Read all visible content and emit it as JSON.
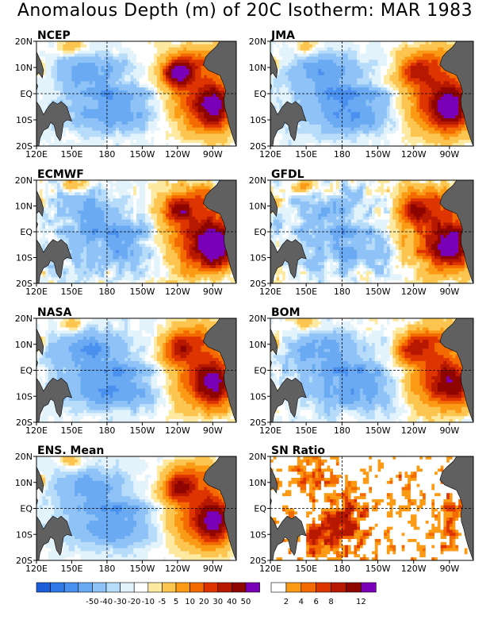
{
  "figure_title": "Anomalous Depth (m) of 20C Isotherm: MAR 1983",
  "chart_data": [
    {
      "type": "heatmap",
      "title": "NCEP",
      "x_ticks": [
        "120E",
        "150E",
        "180",
        "150W",
        "120W",
        "90W"
      ],
      "y_ticks": [
        "20N",
        "10N",
        "EQ",
        "10S",
        "20S"
      ],
      "xlim": [
        "120E",
        "70W"
      ],
      "ylim": [
        "20S",
        "20N"
      ],
      "grid": "dashed lines at EQ and 180",
      "features": {
        "warm_east": 1.0,
        "warm_north": 1.3,
        "cool_west": 0.9,
        "eq_cool": 0.8,
        "noise": 0.2
      }
    },
    {
      "type": "heatmap",
      "title": "JMA",
      "x_ticks": [
        "120E",
        "150E",
        "180",
        "150W",
        "120W",
        "90W"
      ],
      "y_ticks": [
        "20N",
        "10N",
        "EQ",
        "10S",
        "20S"
      ],
      "xlim": [
        "120E",
        "70W"
      ],
      "ylim": [
        "20S",
        "20N"
      ],
      "grid": "dashed lines at EQ and 180",
      "features": {
        "warm_east": 1.1,
        "warm_north": 0.6,
        "cool_west": 1.0,
        "eq_cool": 1.0,
        "noise": 0.2
      }
    },
    {
      "type": "heatmap",
      "title": "ECMWF",
      "x_ticks": [
        "120E",
        "150E",
        "180",
        "150W",
        "120W",
        "90W"
      ],
      "y_ticks": [
        "20N",
        "10N",
        "EQ",
        "10S",
        "20S"
      ],
      "xlim": [
        "120E",
        "70W"
      ],
      "ylim": [
        "20S",
        "20N"
      ],
      "grid": "dashed lines at EQ and 180",
      "features": {
        "warm_east": 1.25,
        "warm_north": 0.7,
        "cool_west": 0.7,
        "eq_cool": 0.9,
        "noise": 0.4
      }
    },
    {
      "type": "heatmap",
      "title": "GFDL",
      "x_ticks": [
        "120E",
        "150E",
        "180",
        "150W",
        "120W",
        "90W"
      ],
      "y_ticks": [
        "20N",
        "10N",
        "EQ",
        "10S",
        "20S"
      ],
      "xlim": [
        "120E",
        "70W"
      ],
      "ylim": [
        "20S",
        "20N"
      ],
      "grid": "dashed lines at EQ and 180",
      "features": {
        "warm_east": 1.1,
        "warm_north": 0.7,
        "cool_west": 0.6,
        "eq_cool": 0.7,
        "noise": 0.45
      }
    },
    {
      "type": "heatmap",
      "title": "NASA",
      "x_ticks": [
        "120E",
        "150E",
        "180",
        "150W",
        "120W",
        "90W"
      ],
      "y_ticks": [
        "20N",
        "10N",
        "EQ",
        "10S",
        "20S"
      ],
      "xlim": [
        "120E",
        "70W"
      ],
      "ylim": [
        "20S",
        "20N"
      ],
      "grid": "dashed lines at EQ and 180",
      "features": {
        "warm_east": 1.0,
        "warm_north": 0.6,
        "cool_west": 1.0,
        "eq_cool": 0.9,
        "noise": 0.2
      }
    },
    {
      "type": "heatmap",
      "title": "BOM",
      "x_ticks": [
        "120E",
        "150E",
        "180",
        "150W",
        "120W",
        "90W"
      ],
      "y_ticks": [
        "20N",
        "10N",
        "EQ",
        "10S",
        "20S"
      ],
      "xlim": [
        "120E",
        "70W"
      ],
      "ylim": [
        "20S",
        "20N"
      ],
      "grid": "dashed lines at EQ and 180",
      "features": {
        "warm_east": 0.9,
        "warm_north": 0.7,
        "cool_west": 0.9,
        "eq_cool": 0.9,
        "noise": 0.3
      }
    },
    {
      "type": "heatmap",
      "title": "ENS. Mean",
      "x_ticks": [
        "120E",
        "150E",
        "180",
        "150W",
        "120W",
        "90W"
      ],
      "y_ticks": [
        "20N",
        "10N",
        "EQ",
        "10S",
        "20S"
      ],
      "xlim": [
        "120E",
        "70W"
      ],
      "ylim": [
        "20S",
        "20N"
      ],
      "grid": "dashed lines at EQ and 180",
      "features": {
        "warm_east": 1.0,
        "warm_north": 0.75,
        "cool_west": 0.9,
        "eq_cool": 0.9,
        "noise": 0.15
      }
    },
    {
      "type": "heatmap",
      "title": "SN Ratio",
      "x_ticks": [
        "120E",
        "150E",
        "180",
        "150W",
        "120W",
        "90W"
      ],
      "y_ticks": [
        "20N",
        "10N",
        "EQ",
        "10S",
        "20S"
      ],
      "xlim": [
        "120E",
        "70W"
      ],
      "ylim": [
        "20S",
        "20N"
      ],
      "grid": "dashed lines at EQ and 180",
      "features": {
        "sn": true,
        "noise": 0.5
      }
    }
  ],
  "colorbar_anomaly": {
    "labels": [
      "-50",
      "-40",
      "-30",
      "-20",
      "-10",
      "-5",
      "5",
      "10",
      "20",
      "30",
      "40",
      "50"
    ],
    "colors": [
      "#1c5ed8",
      "#2f78e8",
      "#4a90ee",
      "#6aaaf2",
      "#8fc2f6",
      "#b7dcfa",
      "#e3f3fc",
      "#ffffff",
      "#fde9a0",
      "#fbc550",
      "#fb9a14",
      "#f36a00",
      "#de3400",
      "#b71800",
      "#8f0500",
      "#7a00b8"
    ]
  },
  "colorbar_sn": {
    "labels": [
      "2",
      "4",
      "6",
      "8",
      "12"
    ],
    "colors": [
      "#ffffff",
      "#fb9a14",
      "#f36a00",
      "#de3400",
      "#b71800",
      "#8f0500",
      "#7a00b8"
    ]
  },
  "land_color": "#606060",
  "grid_color": "#000000"
}
